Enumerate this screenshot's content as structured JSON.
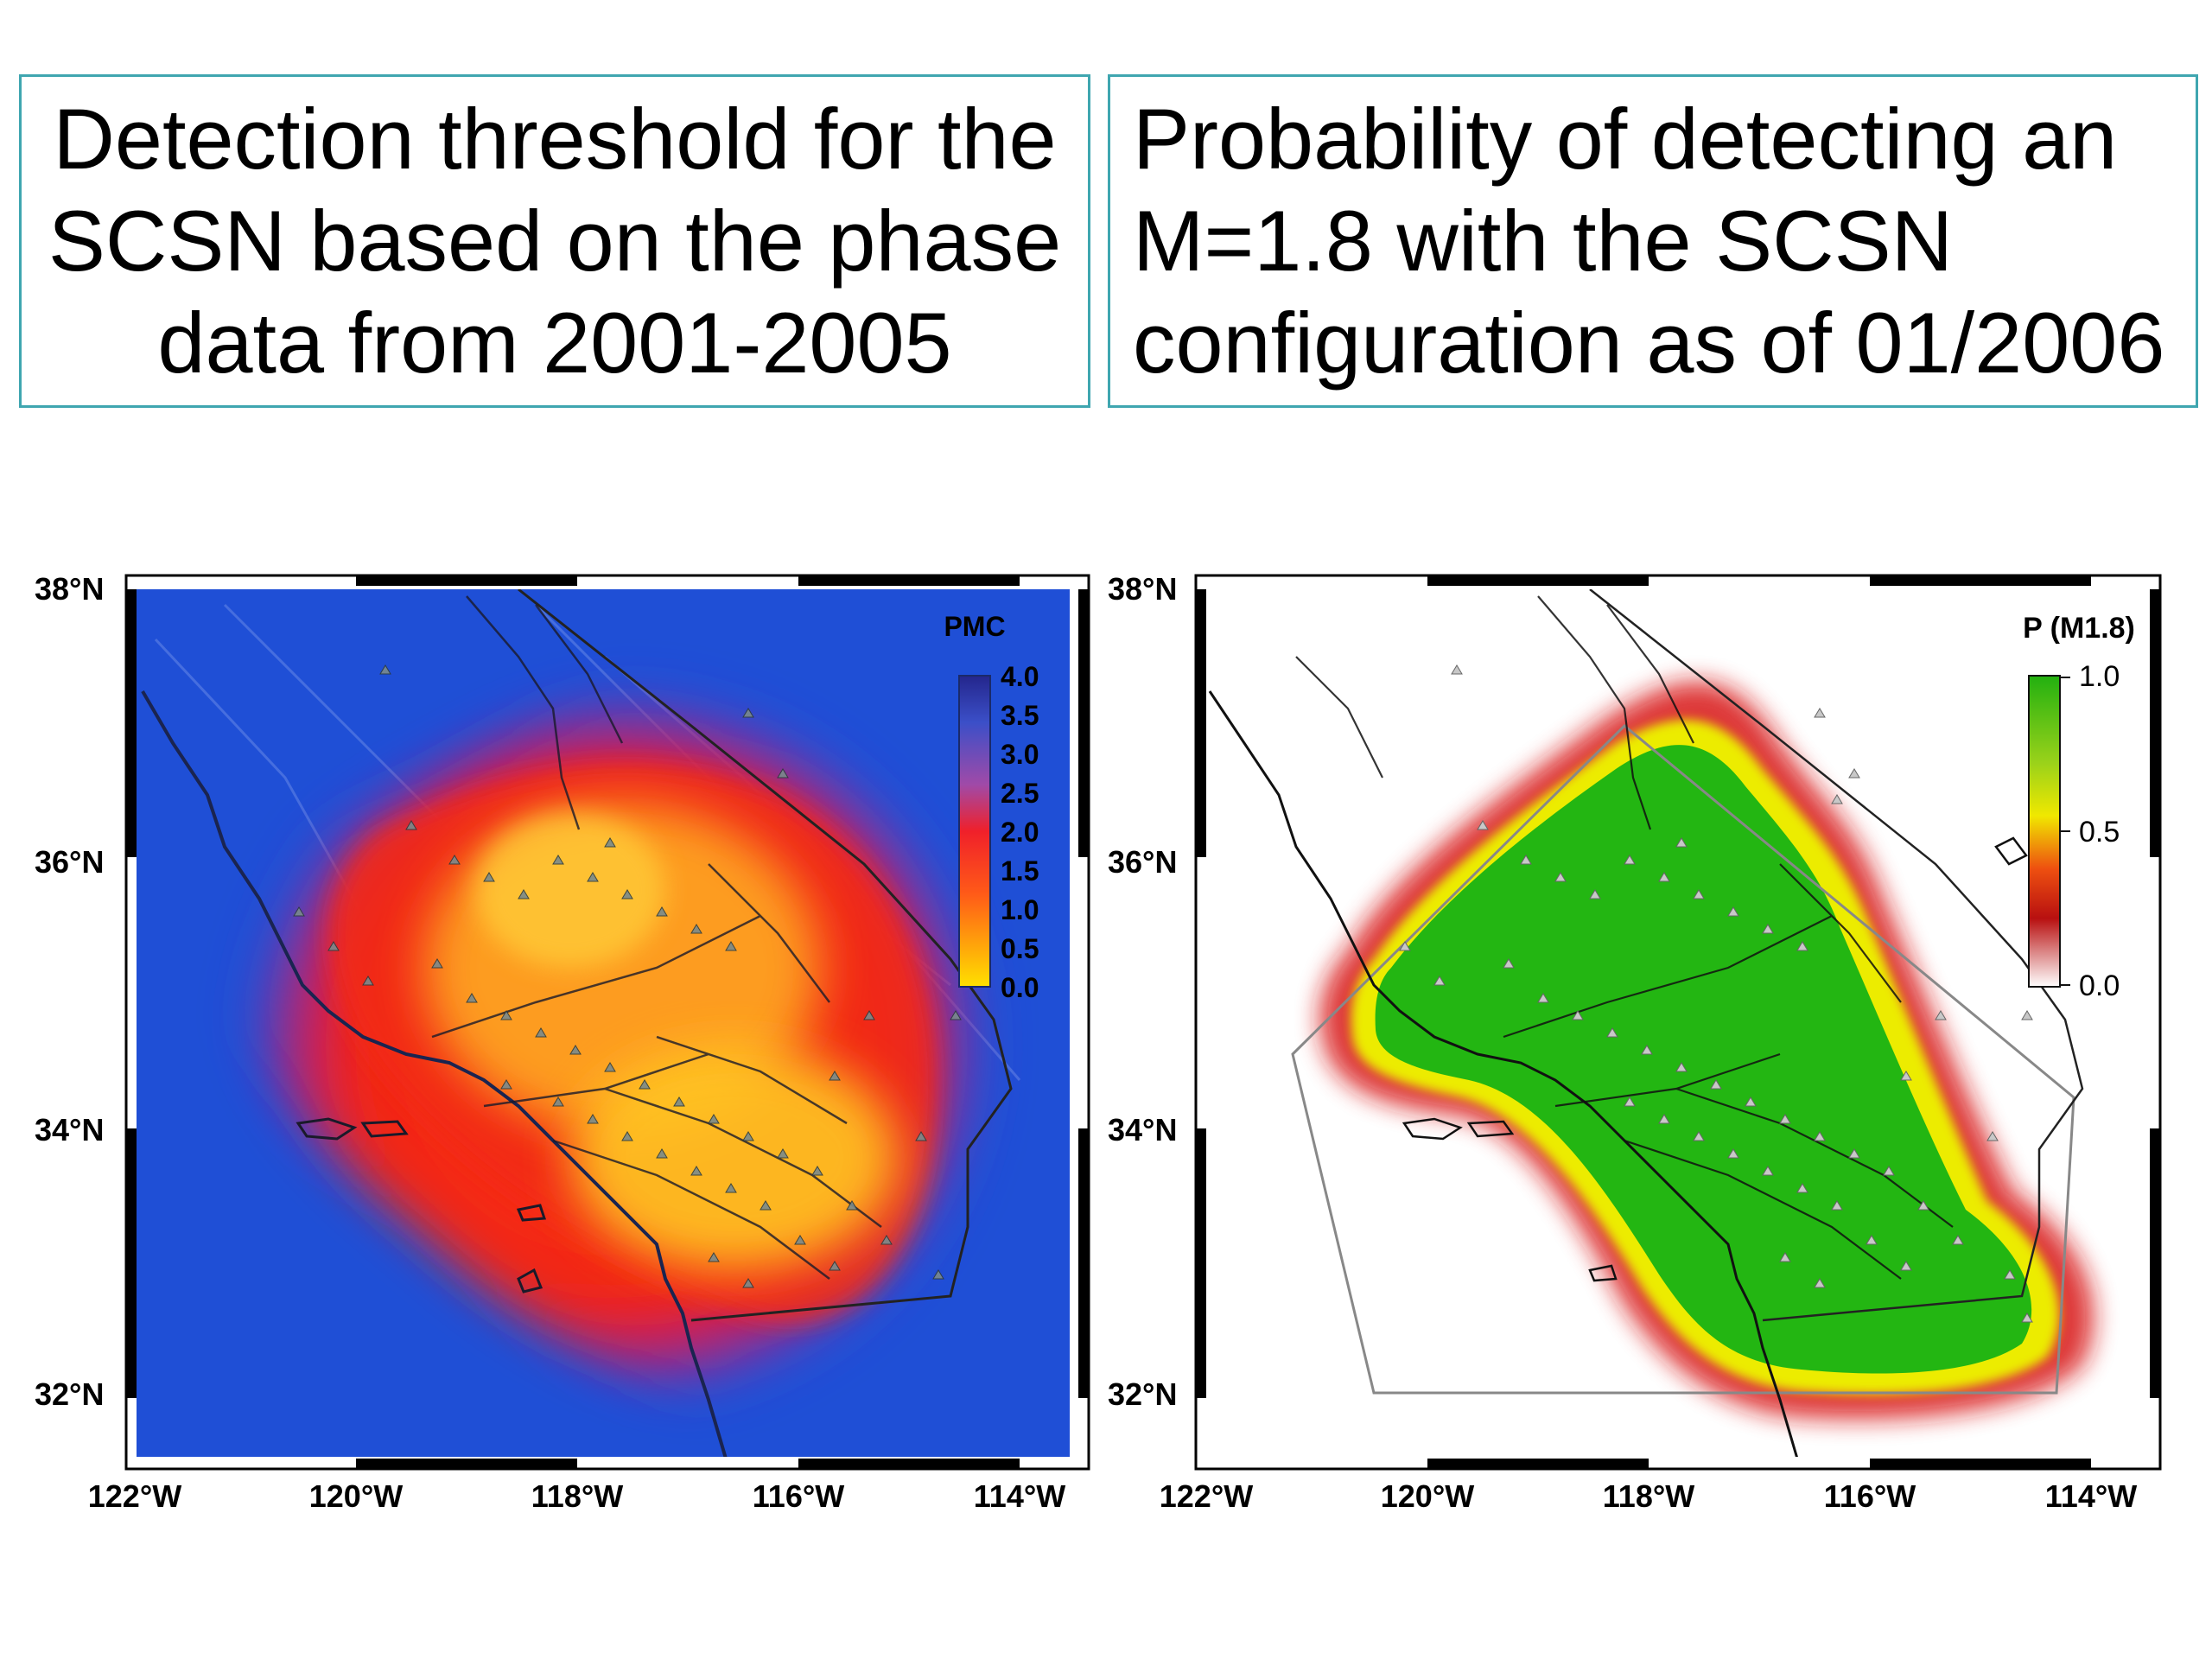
{
  "titles": {
    "left": [
      "Detection threshold for the",
      "SCSN based on the phase",
      "data from 2001-2005"
    ],
    "right": [
      "Probability of detecting an",
      "M=1.8 with the SCSN",
      "configuration as of 01/2006"
    ]
  },
  "axes": {
    "lat_labels": [
      "38°N",
      "36°N",
      "34°N",
      "32°N"
    ],
    "lon_labels": [
      "122°W",
      "120°W",
      "118°W",
      "116°W",
      "114°W"
    ]
  },
  "left_map": {
    "colorbar_title": "PMC",
    "colorbar_ticks": [
      "4.0",
      "3.5",
      "3.0",
      "2.5",
      "2.0",
      "1.5",
      "1.0",
      "0.5",
      "0.0"
    ],
    "colors": {
      "background": "#1f4fd6",
      "high": "#ff2a10",
      "low": "#ffd200"
    }
  },
  "right_map": {
    "colorbar_title": "P (M1.8)",
    "colorbar_ticks": [
      "1.0",
      "0.5",
      "0.0"
    ],
    "colors": {
      "green": "#22b80f",
      "yellow": "#f0f000",
      "red": "#cc1010"
    }
  }
}
